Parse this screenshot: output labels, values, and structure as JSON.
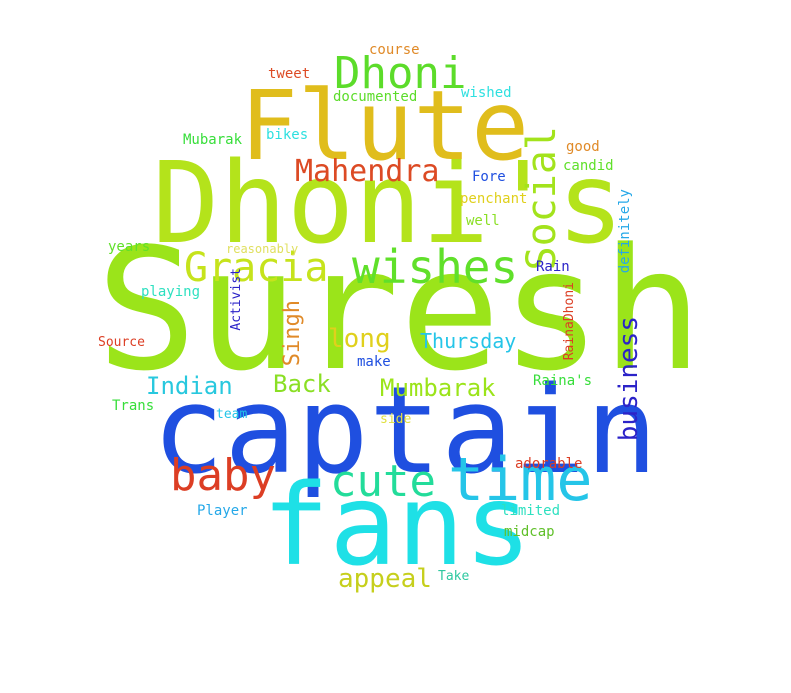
{
  "colors": {
    "background": "#ffffff",
    "lime": "#9be41a",
    "yellow_green": "#c6e31c",
    "gold": "#e0bd1c",
    "blue": "#1f4fe0",
    "cyan": "#1ee0e6",
    "sky": "#25c5e8",
    "red_orange": "#dc3e24",
    "green": "#37de3a",
    "teal": "#23dc9a",
    "indigo": "#2b23c8"
  },
  "words": {
    "suresh": "Suresh",
    "dhonis": "Dhoni's",
    "captain": "captain",
    "fans": "fans",
    "flute": "Flute",
    "dhoni": "Dhoni",
    "time": "time",
    "wishes": "wishes",
    "gracia": "Gracia",
    "baby": "baby",
    "cute": "cute",
    "social": "Social",
    "mahendra": "Mahendra",
    "business": "business",
    "appeal": "appeal",
    "mumbarak": "Mumbarak",
    "back": "Back",
    "indian": "Indian",
    "long": "long",
    "thursday": "Thursday",
    "singh": "Singh",
    "course": "course",
    "tweet": "tweet",
    "documented": "documented",
    "wished": "wished",
    "mubarak": "Mubarak",
    "bikes": "bikes",
    "good": "good",
    "candid": "candid",
    "fore": "Fore",
    "penchant": "penchant",
    "well": "well",
    "definitely": "definitely",
    "years": "years",
    "reasonably": "reasonably",
    "rain": "Rain",
    "playing": "playing",
    "activist": "Activist",
    "source": "Source",
    "make": "make",
    "rainadhoni": "RainaDhoni",
    "rainas": "Raina's",
    "trans": "Trans",
    "team": "team",
    "side": "side",
    "adorable": "adorable",
    "player": "Player",
    "limited": "limited",
    "midcap": "midcap",
    "take": "Take"
  }
}
